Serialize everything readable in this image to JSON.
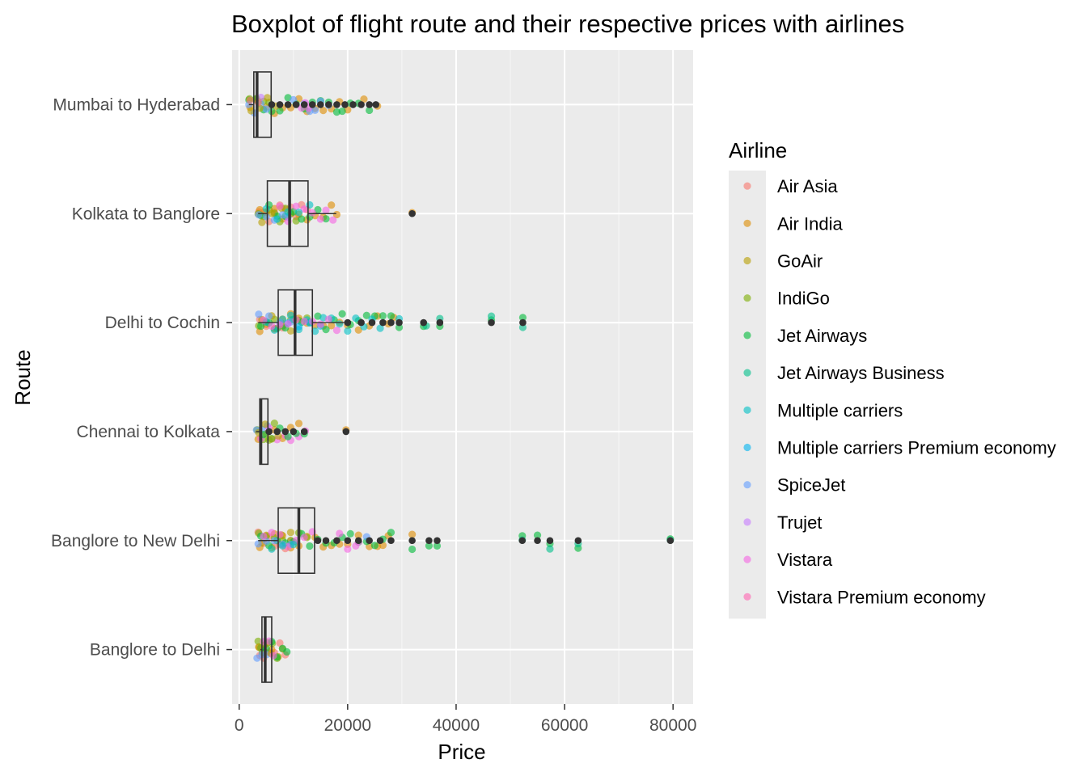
{
  "chart_data": {
    "type": "boxplot",
    "title": "Boxplot of flight route and their respective prices with airlines",
    "xlabel": "Price",
    "ylabel": "Route",
    "xlim": [
      -1300,
      83700
    ],
    "x_ticks": [
      0,
      20000,
      40000,
      60000,
      80000
    ],
    "x_tick_labels": [
      "0",
      "20000",
      "40000",
      "60000",
      "80000"
    ],
    "grid": true,
    "legend": {
      "title": "Airline",
      "placement": "right",
      "entries": [
        {
          "label": "Air Asia",
          "color": "#F8766D"
        },
        {
          "label": "Air India",
          "color": "#DE8C00"
        },
        {
          "label": "GoAir",
          "color": "#B79F00"
        },
        {
          "label": "IndiGo",
          "color": "#7CAE00"
        },
        {
          "label": "Jet Airways",
          "color": "#00BA38"
        },
        {
          "label": "Jet Airways Business",
          "color": "#00C08B"
        },
        {
          "label": "Multiple carriers",
          "color": "#00BFC4"
        },
        {
          "label": "Multiple carriers Premium economy",
          "color": "#00B4F0"
        },
        {
          "label": "SpiceJet",
          "color": "#619CFF"
        },
        {
          "label": "Trujet",
          "color": "#C77CFF"
        },
        {
          "label": "Vistara",
          "color": "#F564E3"
        },
        {
          "label": "Vistara Premium economy",
          "color": "#FF64B0"
        }
      ]
    },
    "categories": [
      "Mumbai to Hyderabad",
      "Kolkata to Banglore",
      "Delhi to Cochin",
      "Chennai to Kolkata",
      "Banglore to New Delhi",
      "Banglore to Delhi"
    ],
    "boxes": [
      {
        "route": "Mumbai to Hyderabad",
        "whisker_low": 1800,
        "q1": 2700,
        "median": 3300,
        "q3": 5900,
        "whisker_high": 6000
      },
      {
        "route": "Kolkata to Banglore",
        "whisker_low": 3500,
        "q1": 5200,
        "median": 9300,
        "q3": 12700,
        "whisker_high": 17900
      },
      {
        "route": "Delhi to Cochin",
        "whisker_low": 3500,
        "q1": 7200,
        "median": 10300,
        "q3": 13500,
        "whisker_high": 19500
      },
      {
        "route": "Chennai to Kolkata",
        "whisker_low": 3100,
        "q1": 3800,
        "median": 4000,
        "q3": 5300,
        "whisker_high": 5400
      },
      {
        "route": "Banglore to New Delhi",
        "whisker_low": 3500,
        "q1": 7200,
        "median": 11000,
        "q3": 13900,
        "whisker_high": 14000
      },
      {
        "route": "Banglore to Delhi",
        "whisker_low": 3900,
        "q1": 4200,
        "median": 4800,
        "q3": 6000,
        "whisker_high": 6100
      }
    ],
    "outliers": [
      {
        "route": "Mumbai to Hyderabad",
        "values": [
          6000,
          7500,
          9000,
          10500,
          12000,
          13500,
          15000,
          16500,
          18000,
          19500,
          21000,
          22500,
          24000,
          25200
        ]
      },
      {
        "route": "Kolkata to Banglore",
        "values": [
          31900
        ]
      },
      {
        "route": "Delhi to Cochin",
        "values": [
          20000,
          22500,
          24500,
          26500,
          28000,
          29500,
          34000,
          37000,
          46500,
          52300
        ]
      },
      {
        "route": "Chennai to Kolkata",
        "values": [
          5500,
          7000,
          8500,
          10000,
          12000,
          19700
        ]
      },
      {
        "route": "Banglore to New Delhi",
        "values": [
          14500,
          16000,
          18000,
          20000,
          22000,
          24000,
          26000,
          28000,
          31900,
          35000,
          36500,
          52200,
          55000,
          57300,
          62500,
          79500
        ]
      },
      {
        "route": "Banglore to Delhi",
        "values": []
      }
    ],
    "points": [
      {
        "route": "Mumbai to Hyderabad",
        "airline": "Air India",
        "values": [
          2000,
          3500,
          5000,
          6500,
          8000,
          9500,
          11000,
          12500,
          14000,
          15500,
          17000,
          18500,
          20000,
          23000,
          25500
        ]
      },
      {
        "route": "Mumbai to Hyderabad",
        "airline": "Jet Airways",
        "values": [
          1800,
          3000,
          4500,
          6000,
          7500,
          9000,
          10500,
          12000,
          13500,
          15000,
          16500,
          18000,
          19000,
          20500,
          22000,
          24000
        ]
      },
      {
        "route": "Mumbai to Hyderabad",
        "airline": "IndiGo",
        "values": [
          1900,
          3200,
          4500,
          5500
        ]
      },
      {
        "route": "Mumbai to Hyderabad",
        "airline": "SpiceJet",
        "values": [
          1800,
          2800,
          4000,
          5000,
          10000,
          12000,
          13000,
          14000,
          15000,
          16500
        ]
      },
      {
        "route": "Mumbai to Hyderabad",
        "airline": "GoAir",
        "values": [
          2200,
          3800,
          5200,
          6800
        ]
      },
      {
        "route": "Mumbai to Hyderabad",
        "airline": "Trujet",
        "values": [
          4000
        ]
      },
      {
        "route": "Mumbai to Hyderabad",
        "airline": "Vistara",
        "values": [
          11500,
          12200,
          12800
        ]
      },
      {
        "route": "Mumbai to Hyderabad",
        "airline": "Air Asia",
        "values": [
          2000,
          3500
        ]
      },
      {
        "route": "Kolkata to Banglore",
        "airline": "Air Asia",
        "values": [
          3600,
          4500,
          5500,
          6500,
          7500,
          8500,
          9500,
          10500,
          11500,
          12500
        ]
      },
      {
        "route": "Kolkata to Banglore",
        "airline": "Air India",
        "values": [
          3800,
          5000,
          6500,
          8000,
          9500,
          11000,
          12500,
          14000,
          15500,
          17000,
          18000,
          31900
        ]
      },
      {
        "route": "Kolkata to Banglore",
        "airline": "IndiGo",
        "values": [
          3500,
          4500,
          5500,
          6500,
          7500,
          8500,
          9500,
          10500
        ]
      },
      {
        "route": "Kolkata to Banglore",
        "airline": "Jet Airways",
        "values": [
          4000,
          5500,
          7000,
          8500,
          10000,
          11500,
          13000,
          14500,
          16000
        ]
      },
      {
        "route": "Kolkata to Banglore",
        "airline": "GoAir",
        "values": [
          4200,
          6000,
          7800
        ]
      },
      {
        "route": "Kolkata to Banglore",
        "airline": "SpiceJet",
        "values": [
          3600,
          5000,
          6500,
          8000,
          9000
        ]
      },
      {
        "route": "Kolkata to Banglore",
        "airline": "Vistara",
        "values": [
          7500,
          9000,
          10500,
          12000,
          13500,
          15000,
          16000,
          17300
        ]
      },
      {
        "route": "Kolkata to Banglore",
        "airline": "Multiple carriers",
        "values": [
          5000,
          7000,
          9000,
          11000,
          13000
        ]
      },
      {
        "route": "Delhi to Cochin",
        "airline": "Air Asia",
        "values": [
          3800,
          5000,
          6500,
          8000
        ]
      },
      {
        "route": "Delhi to Cochin",
        "airline": "Air India",
        "values": [
          3800,
          5000,
          6500,
          8000,
          9500,
          11000,
          12500,
          14000,
          15500,
          17000,
          18500,
          20000,
          22000,
          24000,
          25500,
          27500,
          28500
        ]
      },
      {
        "route": "Delhi to Cochin",
        "airline": "IndiGo",
        "values": [
          3600,
          5000,
          6500,
          8000,
          9500,
          11000,
          12500
        ]
      },
      {
        "route": "Delhi to Cochin",
        "airline": "GoAir",
        "values": [
          4200,
          6000,
          7800,
          9500
        ]
      },
      {
        "route": "Delhi to Cochin",
        "airline": "Jet Airways",
        "values": [
          4000,
          5500,
          7000,
          8500,
          10000,
          11500,
          13000,
          14500,
          16000,
          17500,
          19000,
          20500,
          22000,
          23500,
          25000,
          26500,
          28000,
          29500,
          34000,
          37000,
          46500,
          52300
        ]
      },
      {
        "route": "Delhi to Cochin",
        "airline": "Multiple carriers",
        "values": [
          5000,
          6500,
          8000,
          9500,
          11000,
          12500,
          14000,
          15500,
          17000,
          18500,
          20000,
          21500,
          23000,
          24500,
          26000,
          29500
        ]
      },
      {
        "route": "Delhi to Cochin",
        "airline": "Multiple carriers Premium economy",
        "values": [
          9000,
          11000,
          13000,
          15000
        ]
      },
      {
        "route": "Delhi to Cochin",
        "airline": "Jet Airways Business",
        "values": [
          34500,
          37000,
          46500,
          52300
        ]
      },
      {
        "route": "Delhi to Cochin",
        "airline": "SpiceJet",
        "values": [
          3600,
          5500,
          7500,
          9500
        ]
      },
      {
        "route": "Delhi to Cochin",
        "airline": "Vistara",
        "values": [
          4500,
          6000,
          7500,
          9000,
          10500,
          12000,
          13500,
          15000,
          16500,
          18000
        ]
      },
      {
        "route": "Chennai to Kolkata",
        "airline": "Air India",
        "values": [
          3500,
          5000,
          6500,
          8000,
          9500,
          11000,
          19700
        ]
      },
      {
        "route": "Chennai to Kolkata",
        "airline": "IndiGo",
        "values": [
          3300,
          4500,
          5500,
          6500
        ]
      },
      {
        "route": "Chennai to Kolkata",
        "airline": "SpiceJet",
        "values": [
          3200,
          4200,
          5200
        ]
      },
      {
        "route": "Chennai to Kolkata",
        "airline": "Vistara",
        "values": [
          4000,
          5500,
          7000,
          8500,
          9500,
          11000,
          12200
        ]
      },
      {
        "route": "Chennai to Kolkata",
        "airline": "Jet Airways",
        "values": [
          4500,
          6000,
          7500,
          9000,
          10500,
          12000
        ]
      },
      {
        "route": "Chennai to Kolkata",
        "airline": "GoAir",
        "values": [
          3600,
          4800,
          6000,
          7200
        ]
      },
      {
        "route": "Banglore to New Delhi",
        "airline": "Air Asia",
        "values": [
          3500,
          4500,
          5500,
          6500,
          7500,
          8500,
          9500
        ]
      },
      {
        "route": "Banglore to New Delhi",
        "airline": "Air India",
        "values": [
          3800,
          5000,
          6500,
          8000,
          9500,
          11000,
          12500,
          14000,
          15500,
          17000,
          18500,
          20000,
          22000,
          24000,
          25500,
          26500,
          27500,
          31900
        ]
      },
      {
        "route": "Banglore to New Delhi",
        "airline": "IndiGo",
        "values": [
          3600,
          5000,
          6500,
          8000,
          9500,
          11000,
          12500
        ]
      },
      {
        "route": "Banglore to New Delhi",
        "airline": "GoAir",
        "values": [
          4200,
          6000,
          7800,
          9500
        ]
      },
      {
        "route": "Banglore to New Delhi",
        "airline": "Jet Airways",
        "values": [
          4000,
          5500,
          7000,
          8500,
          10000,
          11500,
          13000,
          14500,
          16000,
          17500,
          19000,
          20500,
          22000,
          23500,
          25000,
          26500,
          28000,
          31900,
          35000,
          36500,
          52200,
          55000,
          57300,
          62500,
          79500
        ]
      },
      {
        "route": "Banglore to New Delhi",
        "airline": "Jet Airways Business",
        "values": [
          52200,
          57300,
          62500,
          79500
        ]
      },
      {
        "route": "Banglore to New Delhi",
        "airline": "SpiceJet",
        "values": [
          3500,
          5000,
          6500,
          8000,
          9500,
          23500
        ]
      },
      {
        "route": "Banglore to New Delhi",
        "airline": "Vistara",
        "values": [
          4500,
          6000,
          7500,
          9000,
          10500,
          12000,
          13500,
          18500,
          20000,
          21500,
          22000
        ]
      },
      {
        "route": "Banglore to New Delhi",
        "airline": "Multiple carriers",
        "values": [
          6000,
          8000,
          10000
        ]
      },
      {
        "route": "Banglore to Delhi",
        "airline": "Air Asia",
        "values": [
          3800,
          4500,
          5500,
          6500,
          7500,
          8500
        ]
      },
      {
        "route": "Banglore to Delhi",
        "airline": "Air India",
        "values": [
          3600,
          4800,
          6000,
          7200,
          8000
        ]
      },
      {
        "route": "Banglore to Delhi",
        "airline": "IndiGo",
        "values": [
          3500,
          4300,
          5200,
          6100,
          7000
        ]
      },
      {
        "route": "Banglore to Delhi",
        "airline": "Jet Airways",
        "values": [
          4000,
          5000,
          6000,
          7000,
          8000,
          8800
        ]
      },
      {
        "route": "Banglore to Delhi",
        "airline": "SpiceJet",
        "values": [
          3300,
          4200,
          5100
        ]
      },
      {
        "route": "Banglore to Delhi",
        "airline": "GoAir",
        "values": [
          3700,
          4800,
          5900
        ]
      },
      {
        "route": "Banglore to Delhi",
        "airline": "Vistara",
        "values": [
          4500,
          5500,
          6300
        ]
      }
    ]
  }
}
